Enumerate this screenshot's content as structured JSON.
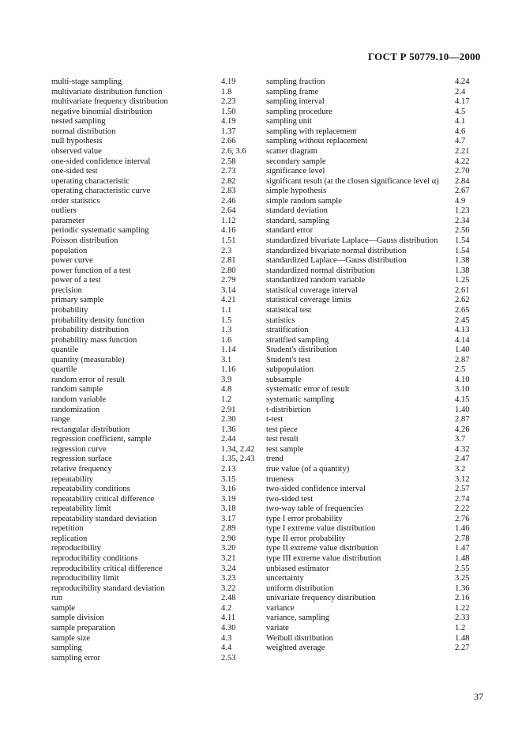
{
  "header": {
    "title": "ГОСТ Р 50779.10—2000"
  },
  "page_number": "37",
  "left_column": [
    {
      "term": "multi-stage sampling",
      "ref": "4.19"
    },
    {
      "term": "multivariate distribution function",
      "ref": "1.8"
    },
    {
      "term": "multivariate frequency distribution",
      "ref": "2.23"
    },
    {
      "term": "negative binomial distribution",
      "ref": "1.50"
    },
    {
      "term": "nested sampling",
      "ref": "4.19"
    },
    {
      "term": "normal distribution",
      "ref": "1.37"
    },
    {
      "term": "null hypothesis",
      "ref": "2.66"
    },
    {
      "term": "observed value",
      "ref": "2.6, 3.6"
    },
    {
      "term": "one-sided confidence interval",
      "ref": "2.58"
    },
    {
      "term": "one-sided test",
      "ref": "2.73"
    },
    {
      "term": "operating characteristic",
      "ref": "2.82"
    },
    {
      "term": "operating characteristic curve",
      "ref": "2.83"
    },
    {
      "term": "order statistics",
      "ref": "2.46"
    },
    {
      "term": "outliers",
      "ref": "2.64"
    },
    {
      "term": "parameter",
      "ref": "1.12"
    },
    {
      "term": "periodic systematic sampling",
      "ref": "4.16"
    },
    {
      "term": "Poisson distribution",
      "ref": "1.51"
    },
    {
      "term": "population",
      "ref": "2.3"
    },
    {
      "term": "power curve",
      "ref": "2.81"
    },
    {
      "term": "power function of a test",
      "ref": "2.80"
    },
    {
      "term": "power of a test",
      "ref": "2.79"
    },
    {
      "term": "precision",
      "ref": "3.14"
    },
    {
      "term": "primary sample",
      "ref": "4.21"
    },
    {
      "term": "probability",
      "ref": "1.1"
    },
    {
      "term": "probability density function",
      "ref": "1.5"
    },
    {
      "term": "probability distribution",
      "ref": "1.3"
    },
    {
      "term": "probability mass function",
      "ref": "1.6"
    },
    {
      "term": "quantile",
      "ref": "1.14"
    },
    {
      "term": "quantity (measurable)",
      "ref": "3.1"
    },
    {
      "term": "quartile",
      "ref": "1.16"
    },
    {
      "term": "random error of result",
      "ref": "3.9"
    },
    {
      "term": "random sample",
      "ref": "4.8"
    },
    {
      "term": "random variable",
      "ref": "1.2"
    },
    {
      "term": "randomization",
      "ref": "2.91"
    },
    {
      "term": "range",
      "ref": "2.30"
    },
    {
      "term": "rectangular distribution",
      "ref": "1.36"
    },
    {
      "term": "regression coefficient, sample",
      "ref": "2.44"
    },
    {
      "term": "regression curve",
      "ref": "1.34, 2.42"
    },
    {
      "term": "regression surface",
      "ref": "1.35, 2.43"
    },
    {
      "term": "relative frequency",
      "ref": "2.13"
    },
    {
      "term": "repeatability",
      "ref": "3.15"
    },
    {
      "term": "repeatability conditions",
      "ref": "3.16"
    },
    {
      "term": "repeatability critical difference",
      "ref": "3.19"
    },
    {
      "term": "repeatability limit",
      "ref": "3.18"
    },
    {
      "term": "repeatability standard deviation",
      "ref": "3.17"
    },
    {
      "term": "repetition",
      "ref": "2.89"
    },
    {
      "term": "replication",
      "ref": "2.90"
    },
    {
      "term": "reproducibility",
      "ref": "3.20"
    },
    {
      "term": "reproducibility conditions",
      "ref": "3.21"
    },
    {
      "term": "reproducibility critical difference",
      "ref": "3.24"
    },
    {
      "term": "reproducibility limit",
      "ref": "3.23"
    },
    {
      "term": "reproducibility standard deviation",
      "ref": "3.22"
    },
    {
      "term": "run",
      "ref": "2.48"
    },
    {
      "term": "sample",
      "ref": "4.2"
    },
    {
      "term": "sample division",
      "ref": "4.11"
    },
    {
      "term": "sample preparation",
      "ref": "4.30"
    },
    {
      "term": "sample size",
      "ref": "4.3"
    },
    {
      "term": "sampling",
      "ref": "4.4"
    },
    {
      "term": "sampling error",
      "ref": "2.53"
    }
  ],
  "right_column": [
    {
      "term": "sampling fraction",
      "ref": "4.24"
    },
    {
      "term": "sampling frame",
      "ref": "2.4"
    },
    {
      "term": "sampling interval",
      "ref": "4.17"
    },
    {
      "term": "sampling procedure",
      "ref": "4.5"
    },
    {
      "term": "sampling unit",
      "ref": "4.1"
    },
    {
      "term": "sampling with replacement",
      "ref": "4.6"
    },
    {
      "term": "sampling without replacement",
      "ref": "4.7"
    },
    {
      "term": "scatter diagram",
      "ref": "2.21"
    },
    {
      "term": "secondary sample",
      "ref": "4.22"
    },
    {
      "term": "significance level",
      "ref": "2.70"
    },
    {
      "term": "significant result (at the closen significance level α)",
      "ref": "2.84"
    },
    {
      "term": "simple hypothesis",
      "ref": "2.67"
    },
    {
      "term": "simple random sample",
      "ref": "4.9"
    },
    {
      "term": "standard deviation",
      "ref": "1.23"
    },
    {
      "term": "standard, sampling",
      "ref": "2.34"
    },
    {
      "term": "standard error",
      "ref": "2.56"
    },
    {
      "term": "standardized bivariate Laplace—Gauss distribution",
      "ref": "1.54"
    },
    {
      "term": "standardized bivariate normal distribution",
      "ref": "1.54"
    },
    {
      "term": "standardized Laplace—Gauss distribution",
      "ref": "1.38"
    },
    {
      "term": "standardized normal distribution",
      "ref": "1.38"
    },
    {
      "term": "standardized random variable",
      "ref": "1.25"
    },
    {
      "term": "statistical coverage interval",
      "ref": "2.61"
    },
    {
      "term": "statistical coverage limits",
      "ref": "2.62"
    },
    {
      "term": "statistical test",
      "ref": "2.65"
    },
    {
      "term": "statistics",
      "ref": "2.45"
    },
    {
      "term": "stratification",
      "ref": "4.13"
    },
    {
      "term": "stratified sampling",
      "ref": "4.14"
    },
    {
      "term": "Student's distribution",
      "ref": "1.40"
    },
    {
      "term": "Student's test",
      "ref": "2.87"
    },
    {
      "term": "subpopulation",
      "ref": "2.5"
    },
    {
      "term": "subsample",
      "ref": "4.10"
    },
    {
      "term": "systematic error of result",
      "ref": "3.10"
    },
    {
      "term": "systematic sampling",
      "ref": "4.15"
    },
    {
      "term": "t-distribirtion",
      "ref": "1.40"
    },
    {
      "term": "t-test",
      "ref": "2.87"
    },
    {
      "term": "test piece",
      "ref": "4.26"
    },
    {
      "term": "test result",
      "ref": "3.7"
    },
    {
      "term": "test sample",
      "ref": "4.32"
    },
    {
      "term": "trend",
      "ref": "2.47"
    },
    {
      "term": "true value (of a quantity)",
      "ref": "3.2"
    },
    {
      "term": "trueness",
      "ref": "3.12"
    },
    {
      "term": "two-sided confidence interval",
      "ref": "2.57"
    },
    {
      "term": "two-sided test",
      "ref": "2.74"
    },
    {
      "term": "two-way table of frequencies",
      "ref": "2.22"
    },
    {
      "term": "type I error probability",
      "ref": "2.76"
    },
    {
      "term": "type I extreme value distribution",
      "ref": "1.46"
    },
    {
      "term": "type II error probability",
      "ref": "2.78"
    },
    {
      "term": "type II extreme value distribution",
      "ref": "1.47"
    },
    {
      "term": "type III extreme value distribution",
      "ref": "1.48"
    },
    {
      "term": "unbiased estimator",
      "ref": "2.55"
    },
    {
      "term": "uncertainty",
      "ref": "3.25"
    },
    {
      "term": "uniform distribution",
      "ref": "1.36"
    },
    {
      "term": "univariate frequency distribution",
      "ref": "2.16"
    },
    {
      "term": "variance",
      "ref": "1.22"
    },
    {
      "term": "variance, sampling",
      "ref": "2.33"
    },
    {
      "term": "variate",
      "ref": "1.2"
    },
    {
      "term": "Weibull distribution",
      "ref": "1.48"
    },
    {
      "term": "weighted average",
      "ref": "2.27"
    }
  ]
}
